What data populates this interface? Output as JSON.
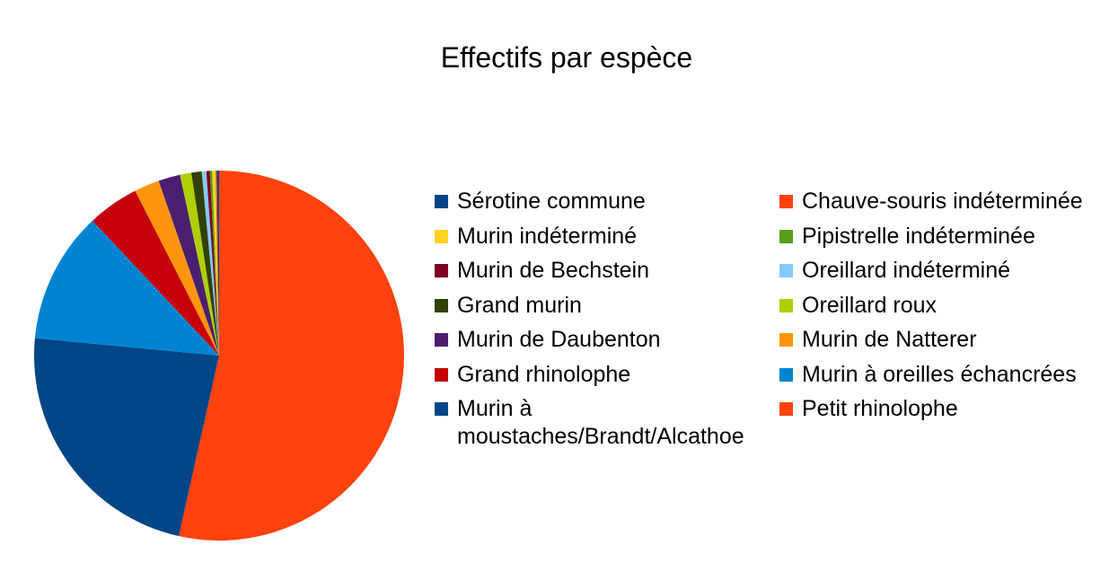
{
  "chart_data": {
    "type": "pie",
    "title": "Effectifs par espèce",
    "legend_position": "right",
    "slices": [
      {
        "label": "Petit rhinolophe",
        "value": 53.5,
        "color": "#ff420e"
      },
      {
        "label": "Murin à moustaches/Brandt/Alcathoe",
        "value": 23.0,
        "color": "#004586"
      },
      {
        "label": "Murin à oreilles échancrées",
        "value": 11.5,
        "color": "#0084d1"
      },
      {
        "label": "Grand rhinolophe",
        "value": 4.5,
        "color": "#c5000b"
      },
      {
        "label": "Murin de Natterer",
        "value": 2.2,
        "color": "#ff950e"
      },
      {
        "label": "Murin de Daubenton",
        "value": 1.9,
        "color": "#4b1f6f"
      },
      {
        "label": "Oreillard roux",
        "value": 1.0,
        "color": "#aecf00"
      },
      {
        "label": "Grand murin",
        "value": 0.9,
        "color": "#314004"
      },
      {
        "label": "Oreillard indéterminé",
        "value": 0.4,
        "color": "#83caff"
      },
      {
        "label": "Murin de Bechstein",
        "value": 0.3,
        "color": "#7e0021"
      },
      {
        "label": "Pipistrelle indéterminée",
        "value": 0.2,
        "color": "#579d1c"
      },
      {
        "label": "Murin indéterminé",
        "value": 0.3,
        "color": "#ffd320"
      },
      {
        "label": "Chauve-souris indéterminée",
        "value": 0.1,
        "color": "#ff420e"
      },
      {
        "label": "Sérotine commune",
        "value": 0.2,
        "color": "#004586"
      }
    ],
    "legend": [
      [
        {
          "label": "Sérotine commune",
          "color": "#004586"
        },
        {
          "label": "Murin indéterminé",
          "color": "#ffd320"
        },
        {
          "label": "Murin de Bechstein",
          "color": "#7e0021"
        },
        {
          "label": "Grand murin",
          "color": "#314004"
        },
        {
          "label": "Murin de Daubenton",
          "color": "#4b1f6f"
        },
        {
          "label": "Grand rhinolophe",
          "color": "#c5000b"
        },
        {
          "label": "Murin à moustaches/Brandt/Alcathoe",
          "color": "#004586"
        }
      ],
      [
        {
          "label": "Chauve-souris indéterminée",
          "color": "#ff420e"
        },
        {
          "label": "Pipistrelle indéterminée",
          "color": "#579d1c"
        },
        {
          "label": "Oreillard indéterminé",
          "color": "#83caff"
        },
        {
          "label": "Oreillard roux",
          "color": "#aecf00"
        },
        {
          "label": "Murin de Natterer",
          "color": "#ff950e"
        },
        {
          "label": "Murin à oreilles échancrées",
          "color": "#0084d1"
        },
        {
          "label": "Petit rhinolophe",
          "color": "#ff420e"
        }
      ]
    ]
  }
}
